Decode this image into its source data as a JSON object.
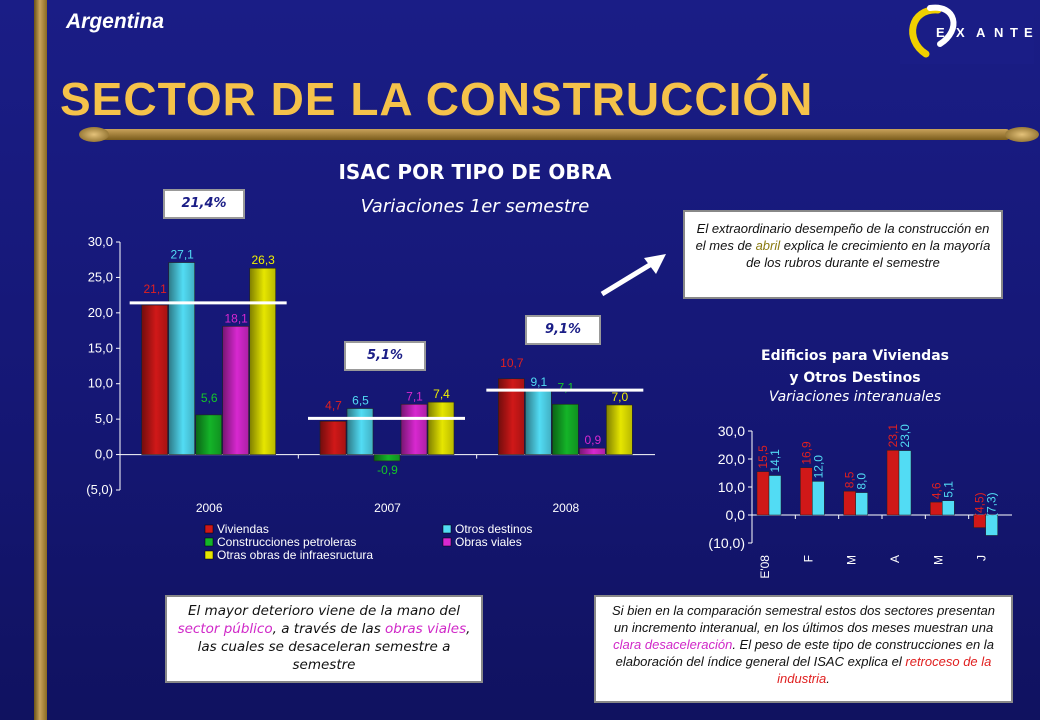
{
  "header": {
    "country": "Argentina",
    "title": "SECTOR DE LA CONSTRUCCIÓN",
    "logo_text": "EXANTE"
  },
  "main_chart": {
    "title": "ISAC POR TIPO DE OBRA",
    "subtitle": "Variaciones 1er semestre",
    "totals": [
      "21,4%",
      "5,1%",
      "9,1%"
    ]
  },
  "notes": {
    "top": "El extraordinario desempeño de la construcción en el mes de abril explica le crecimiento en la mayoría de los rubros durante el semestre",
    "top_parts": [
      "El extraordinario desempeño de la construcción en el mes de ",
      "abril",
      " explica le crecimiento en la mayoría de los rubros durante el semestre"
    ],
    "left_parts": [
      "El mayor deterioro viene de la mano del ",
      "sector público",
      ", a través de las ",
      "obras viales",
      ", las cuales se desaceleran semestre a semestre"
    ],
    "right_parts": [
      "Si bien en la comparación semestral estos dos sectores presentan un incremento interanual, en los últimos dos meses muestran una ",
      "clara desaceleración",
      ".  El peso de este tipo de construcciones en la elaboración del índice general del ISAC  explica el ",
      "retroceso de la industria",
      "."
    ]
  },
  "second_chart": {
    "title_line1": "Edificios para Viviendas",
    "title_line2": "y Otros Destinos",
    "subtitle": "Variaciones interanuales"
  },
  "colors": {
    "viviendas": "#d01818",
    "otros_destinos": "#52dcf4",
    "petroleras": "#14b428",
    "viales": "#d828d0",
    "infraestructura": "#e6e600",
    "accent": "#f5c24a"
  },
  "chart_data": [
    {
      "type": "bar",
      "categories": [
        "2006",
        "2007",
        "2008"
      ],
      "series": [
        {
          "name": "Viviendas",
          "values": [
            21.1,
            4.7,
            10.7
          ],
          "labels": [
            "21,1",
            "4,7",
            "10,7"
          ]
        },
        {
          "name": "Otros destinos",
          "values": [
            27.1,
            6.5,
            9.1
          ],
          "labels": [
            "27,1",
            "6,5",
            "9,1"
          ]
        },
        {
          "name": "Construcciones petroleras",
          "values": [
            5.6,
            -0.9,
            7.1
          ],
          "labels": [
            "5,6",
            "-0,9",
            "7,1"
          ]
        },
        {
          "name": "Obras viales",
          "values": [
            18.1,
            7.1,
            0.9
          ],
          "labels": [
            "18,1",
            "7,1",
            "0,9"
          ]
        },
        {
          "name": "Otras obras de infraesructura",
          "values": [
            26.3,
            7.4,
            7.0
          ],
          "labels": [
            "26,3",
            "7,4",
            "7,0"
          ]
        }
      ],
      "ylim": [
        -5,
        30
      ],
      "yticks": [
        "(5,0)",
        "0,0",
        "5,0",
        "10,0",
        "15,0",
        "20,0",
        "25,0",
        "30,0"
      ],
      "legend": "bottom",
      "grid": false
    },
    {
      "type": "bar",
      "categories": [
        "E'08",
        "F",
        "M",
        "A",
        "M",
        "J"
      ],
      "series": [
        {
          "values": [
            15.5,
            16.9,
            8.5,
            23.1,
            4.6,
            -4.5
          ],
          "labels": [
            "15,5",
            "16,9",
            "8,5",
            "23,1",
            "4,6",
            "(4,5)"
          ]
        },
        {
          "values": [
            14.1,
            12.0,
            8.0,
            23.0,
            5.1,
            -7.3
          ],
          "labels": [
            "14,1",
            "12,0",
            "8,0",
            "23,0",
            "5,1",
            "(7,3)"
          ]
        }
      ],
      "ylim": [
        -10,
        30
      ],
      "yticks": [
        "(10,0)",
        "0,0",
        "10,0",
        "20,0",
        "30,0"
      ],
      "grid": false
    }
  ]
}
